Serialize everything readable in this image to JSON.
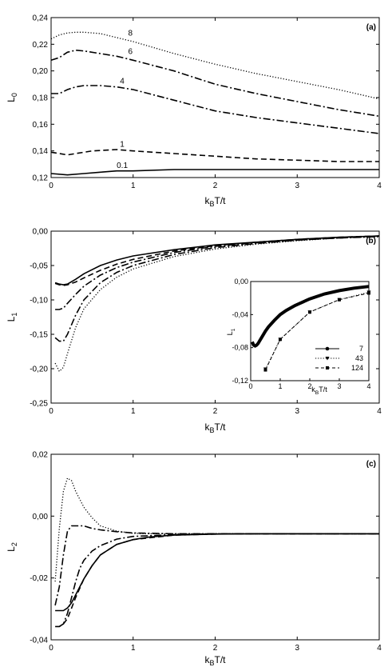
{
  "chart_data": [
    {
      "type": "line",
      "panel_label": "(a)",
      "xlabel": "k_BT/t",
      "ylabel": "L_0",
      "xlim": [
        0,
        4
      ],
      "ylim": [
        0.12,
        0.24
      ],
      "xticks": [
        "0",
        "1",
        "2",
        "3",
        "4"
      ],
      "yticks": [
        "0,12",
        "0,14",
        "0,16",
        "0,18",
        "0,20",
        "0,22",
        "0,24"
      ],
      "series": [
        {
          "name": "8",
          "style": "dotted",
          "x": [
            0,
            0.1,
            0.2,
            0.3,
            0.4,
            0.6,
            0.8,
            1.0,
            1.5,
            2.0,
            2.5,
            3.0,
            3.5,
            4.0
          ],
          "y": [
            0.224,
            0.227,
            0.2285,
            0.229,
            0.229,
            0.228,
            0.225,
            0.222,
            0.213,
            0.205,
            0.198,
            0.192,
            0.186,
            0.179
          ]
        },
        {
          "name": "6",
          "style": "dashdot",
          "x": [
            0,
            0.1,
            0.2,
            0.3,
            0.4,
            0.6,
            0.8,
            1.0,
            1.5,
            2.0,
            2.5,
            3.0,
            3.5,
            4.0
          ],
          "y": [
            0.208,
            0.21,
            0.214,
            0.2155,
            0.215,
            0.213,
            0.211,
            0.208,
            0.2,
            0.19,
            0.183,
            0.177,
            0.171,
            0.166
          ]
        },
        {
          "name": "4",
          "style": "dashdot",
          "x": [
            0,
            0.1,
            0.2,
            0.3,
            0.4,
            0.5,
            0.6,
            0.8,
            1.0,
            1.5,
            2.0,
            2.5,
            3.0,
            3.5,
            4.0
          ],
          "y": [
            0.183,
            0.183,
            0.186,
            0.188,
            0.189,
            0.189,
            0.189,
            0.188,
            0.186,
            0.178,
            0.17,
            0.165,
            0.161,
            0.157,
            0.153
          ]
        },
        {
          "name": "1",
          "style": "dashed",
          "x": [
            0,
            0.1,
            0.2,
            0.3,
            0.5,
            0.8,
            1.0,
            1.5,
            2.0,
            2.5,
            3.0,
            3.5,
            4.0
          ],
          "y": [
            0.139,
            0.138,
            0.137,
            0.138,
            0.14,
            0.141,
            0.14,
            0.138,
            0.136,
            0.134,
            0.133,
            0.132,
            0.132
          ]
        },
        {
          "name": "0.1",
          "style": "solid",
          "x": [
            0,
            0.2,
            0.4,
            0.6,
            0.8,
            1.0,
            1.5,
            2.0,
            2.5,
            3.0,
            3.5,
            4.0
          ],
          "y": [
            0.123,
            0.122,
            0.123,
            0.124,
            0.125,
            0.125,
            0.126,
            0.126,
            0.126,
            0.126,
            0.126,
            0.126
          ]
        }
      ]
    },
    {
      "type": "line",
      "panel_label": "(b)",
      "xlabel": "k_BT/t",
      "ylabel": "L_1",
      "xlim": [
        0,
        4
      ],
      "ylim": [
        -0.25,
        0
      ],
      "xticks": [
        "0",
        "1",
        "2",
        "3",
        "4"
      ],
      "yticks": [
        "-0,25",
        "-0,20",
        "-0,15",
        "-0,10",
        "-0,05",
        "0,00"
      ],
      "series": [
        {
          "style": "solid",
          "x": [
            0.05,
            0.1,
            0.15,
            0.2,
            0.3,
            0.4,
            0.6,
            0.8,
            1.0,
            1.5,
            2.0,
            2.5,
            3.0,
            3.5,
            4.0
          ],
          "y": [
            -0.075,
            -0.077,
            -0.078,
            -0.077,
            -0.07,
            -0.062,
            -0.05,
            -0.042,
            -0.036,
            -0.027,
            -0.02,
            -0.016,
            -0.012,
            -0.009,
            -0.007
          ]
        },
        {
          "style": "dashed",
          "x": [
            0.05,
            0.1,
            0.15,
            0.2,
            0.3,
            0.4,
            0.6,
            0.8,
            1.0,
            1.5,
            2.0,
            2.5,
            3.0,
            3.5,
            4.0
          ],
          "y": [
            -0.076,
            -0.078,
            -0.079,
            -0.078,
            -0.074,
            -0.068,
            -0.057,
            -0.048,
            -0.041,
            -0.029,
            -0.021,
            -0.016,
            -0.012,
            -0.009,
            -0.007
          ]
        },
        {
          "style": "dashdot",
          "x": [
            0.05,
            0.1,
            0.15,
            0.2,
            0.3,
            0.4,
            0.6,
            0.8,
            1.0,
            1.5,
            2.0,
            2.5,
            3.0,
            3.5,
            4.0
          ],
          "y": [
            -0.114,
            -0.114,
            -0.112,
            -0.105,
            -0.092,
            -0.08,
            -0.064,
            -0.053,
            -0.045,
            -0.031,
            -0.022,
            -0.017,
            -0.013,
            -0.01,
            -0.007
          ]
        },
        {
          "style": "dashdot",
          "x": [
            0.05,
            0.1,
            0.15,
            0.2,
            0.3,
            0.4,
            0.6,
            0.8,
            1.0,
            1.5,
            2.0,
            2.5,
            3.0,
            3.5,
            4.0
          ],
          "y": [
            -0.155,
            -0.16,
            -0.16,
            -0.15,
            -0.122,
            -0.1,
            -0.075,
            -0.06,
            -0.05,
            -0.034,
            -0.024,
            -0.018,
            -0.013,
            -0.01,
            -0.008
          ]
        },
        {
          "style": "dotted",
          "x": [
            0.05,
            0.1,
            0.15,
            0.2,
            0.3,
            0.4,
            0.6,
            0.8,
            1.0,
            1.5,
            2.0,
            2.5,
            3.0,
            3.5,
            4.0
          ],
          "y": [
            -0.192,
            -0.204,
            -0.198,
            -0.178,
            -0.14,
            -0.113,
            -0.085,
            -0.067,
            -0.055,
            -0.037,
            -0.026,
            -0.019,
            -0.014,
            -0.01,
            -0.008
          ]
        }
      ],
      "inset": {
        "ylabel": "L_1",
        "xlabel": "k_BT/t",
        "xlim": [
          0,
          4
        ],
        "ylim": [
          -0.12,
          0
        ],
        "xticks": [
          "0",
          "1",
          "2",
          "3",
          "4"
        ],
        "yticks": [
          "-0,12",
          "-0,08",
          "-0,04",
          "0,00"
        ],
        "series": [
          {
            "name": "7",
            "style": "solid-circle",
            "x": [
              0.05,
              0.1,
              0.15,
              0.2,
              0.25,
              0.3,
              0.4,
              0.5,
              0.6,
              0.8,
              1.0,
              1.2,
              1.5,
              2.0,
              2.5,
              3.0,
              3.5,
              4.0
            ],
            "y": [
              -0.073,
              -0.077,
              -0.078,
              -0.077,
              -0.075,
              -0.072,
              -0.066,
              -0.06,
              -0.055,
              -0.047,
              -0.04,
              -0.035,
              -0.029,
              -0.021,
              -0.015,
              -0.011,
              -0.008,
              -0.006
            ]
          },
          {
            "name": "43",
            "style": "dotted-triangle",
            "x": [
              0.5,
              1.0,
              2.0,
              3.0,
              4.0
            ],
            "y": [
              -0.106,
              -0.07,
              -0.037,
              -0.022,
              -0.013
            ]
          },
          {
            "name": "124",
            "style": "dashed-square",
            "x": [
              0.5,
              1.0,
              2.0,
              3.0,
              4.0
            ],
            "y": [
              -0.107,
              -0.07,
              -0.037,
              -0.022,
              -0.014
            ]
          }
        ]
      }
    },
    {
      "type": "line",
      "panel_label": "(c)",
      "xlabel": "k_BT/t",
      "ylabel": "L_2",
      "xlim": [
        0,
        4
      ],
      "ylim": [
        -0.04,
        0.03
      ],
      "xticks": [
        "0",
        "1",
        "2",
        "3",
        "4"
      ],
      "yticks": [
        "-0,04",
        "-0,02",
        "0,00",
        "0,02"
      ],
      "series": [
        {
          "style": "dotted",
          "x": [
            0.05,
            0.1,
            0.15,
            0.2,
            0.25,
            0.3,
            0.4,
            0.5,
            0.6,
            0.8,
            1.0,
            1.2,
            1.5,
            2.0,
            2.5,
            3.0,
            4.0
          ],
          "y": [
            -0.018,
            0.002,
            0.016,
            0.021,
            0.02,
            0.016,
            0.01,
            0.006,
            0.003,
            0.001,
            0.0002,
            0.0,
            0.0,
            0.0,
            0.0,
            0.0,
            0.0
          ]
        },
        {
          "style": "dashdot",
          "x": [
            0.05,
            0.1,
            0.15,
            0.2,
            0.25,
            0.3,
            0.4,
            0.5,
            0.6,
            0.8,
            1.0,
            1.5,
            2.0,
            2.5,
            3.0,
            4.0
          ],
          "y": [
            -0.027,
            -0.02,
            -0.008,
            0.001,
            0.003,
            0.003,
            0.003,
            0.002,
            0.0015,
            0.0008,
            0.0003,
            0.0,
            0.0,
            0.0,
            0.0,
            0.0
          ]
        },
        {
          "style": "dashdot",
          "x": [
            0.1,
            0.15,
            0.2,
            0.25,
            0.3,
            0.35,
            0.4,
            0.5,
            0.6,
            0.8,
            1.0,
            1.5,
            2.0,
            2.5,
            3.0,
            4.0
          ],
          "y": [
            -0.035,
            -0.034,
            -0.03,
            -0.024,
            -0.018,
            -0.013,
            -0.01,
            -0.0065,
            -0.0045,
            -0.002,
            -0.001,
            -0.0003,
            0.0,
            0.0,
            0.0,
            0.0
          ]
        },
        {
          "style": "dashed",
          "x": [
            0.05,
            0.1,
            0.15,
            0.2,
            0.25,
            0.3,
            0.4,
            0.5,
            0.6,
            0.8,
            1.0,
            1.5,
            2.0,
            2.5,
            3.0,
            4.0
          ],
          "y": [
            -0.035,
            -0.035,
            -0.034,
            -0.032,
            -0.028,
            -0.024,
            -0.017,
            -0.012,
            -0.008,
            -0.004,
            -0.0022,
            -0.0005,
            -0.0001,
            0.0,
            0.0,
            0.0
          ]
        },
        {
          "style": "solid",
          "x": [
            0.05,
            0.1,
            0.15,
            0.2,
            0.25,
            0.3,
            0.4,
            0.5,
            0.6,
            0.8,
            1.0,
            1.2,
            1.5,
            2.0,
            2.5,
            3.0,
            4.0
          ],
          "y": [
            -0.029,
            -0.029,
            -0.029,
            -0.028,
            -0.026,
            -0.023,
            -0.017,
            -0.012,
            -0.008,
            -0.004,
            -0.0022,
            -0.0012,
            -0.0005,
            -0.0001,
            0.0,
            0.0,
            0.0
          ]
        }
      ]
    }
  ]
}
